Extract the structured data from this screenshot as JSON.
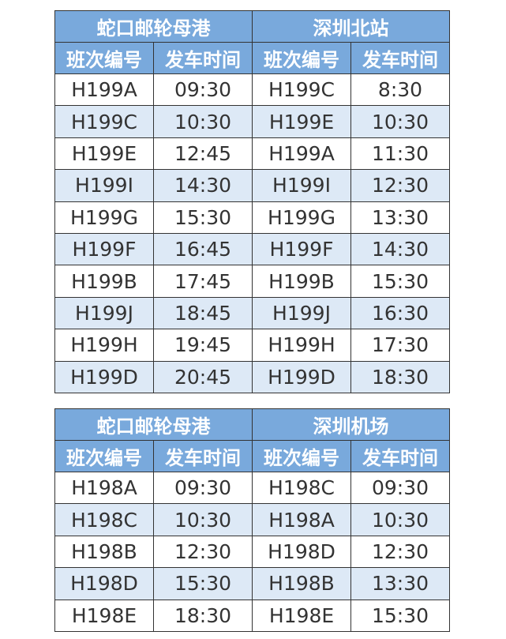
{
  "tables": [
    {
      "left_station": "蛇口邮轮母港",
      "right_station": "深圳北站",
      "headers": [
        "班次编号",
        "发车时间",
        "班次编号",
        "发车时间"
      ],
      "rows": [
        [
          "H199A",
          "09:30",
          "H199C",
          "8:30"
        ],
        [
          "H199C",
          "10:30",
          "H199E",
          "10:30"
        ],
        [
          "H199E",
          "12:45",
          "H199A",
          "11:30"
        ],
        [
          "H199I",
          "14:30",
          "H199I",
          "12:30"
        ],
        [
          "H199G",
          "15:30",
          "H199G",
          "13:30"
        ],
        [
          "H199F",
          "16:45",
          "H199F",
          "14:30"
        ],
        [
          "H199B",
          "17:45",
          "H199B",
          "15:30"
        ],
        [
          "H199J",
          "18:45",
          "H199J",
          "16:30"
        ],
        [
          "H199H",
          "19:45",
          "H199H",
          "17:30"
        ],
        [
          "H199D",
          "20:45",
          "H199D",
          "18:30"
        ]
      ]
    },
    {
      "left_station": "蛇口邮轮母港",
      "right_station": "深圳机场",
      "headers": [
        "班次编号",
        "发车时间",
        "班次编号",
        "发车时间"
      ],
      "rows": [
        [
          "H198A",
          "09:30",
          "H198C",
          "09:30"
        ],
        [
          "H198C",
          "10:30",
          "H198A",
          "10:30"
        ],
        [
          "H198B",
          "12:30",
          "H198D",
          "12:30"
        ],
        [
          "H198D",
          "15:30",
          "H198B",
          "13:30"
        ],
        [
          "H198E",
          "18:30",
          "H198E",
          "15:30"
        ]
      ]
    }
  ],
  "colors": {
    "header_bg": "#79a9dc",
    "alt_row": "#dde9f6",
    "border": "#333333"
  }
}
